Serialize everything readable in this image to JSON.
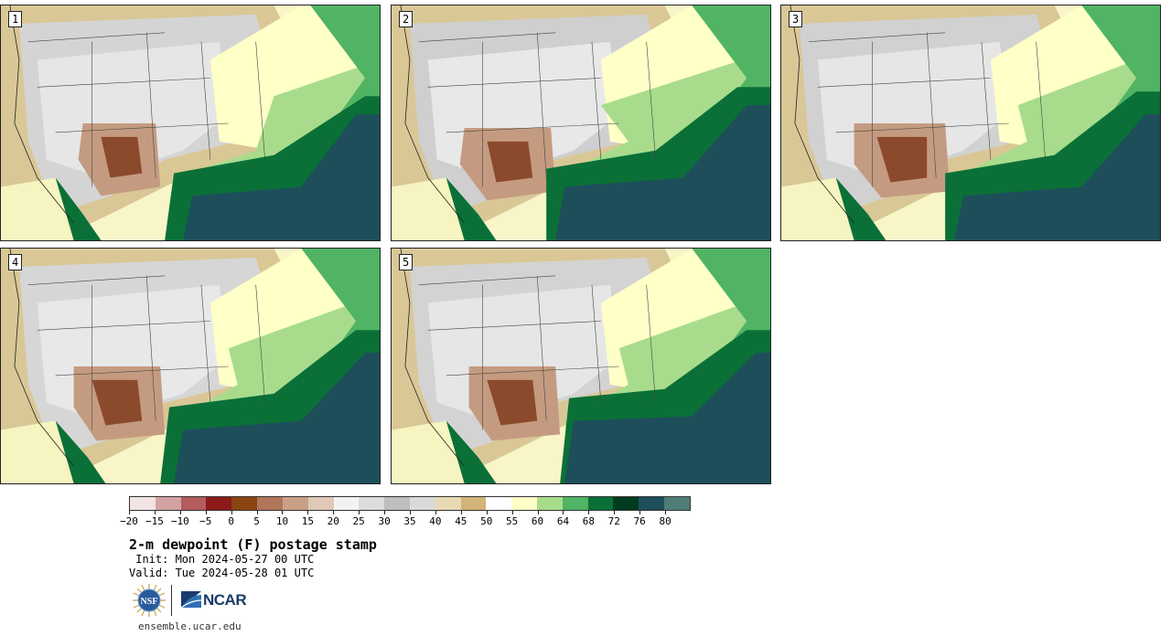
{
  "panels": [
    {
      "label": "1"
    },
    {
      "label": "2"
    },
    {
      "label": "3"
    },
    {
      "label": "4"
    },
    {
      "label": "5"
    }
  ],
  "colorbar": {
    "colors": [
      "#f2e4e4",
      "#d3a3a3",
      "#b35c5c",
      "#8c1a1a",
      "#8b4513",
      "#b0755a",
      "#c9a087",
      "#e0c8b8",
      "#f2f2f2",
      "#dcdcdc",
      "#bebebe",
      "#d9d9d9",
      "#e6d9b4",
      "#d2b478",
      "#ffffff",
      "#ffffc8",
      "#a8dc8c",
      "#50b464",
      "#0a7038",
      "#003c20",
      "#1e4e5a",
      "#507c78"
    ],
    "tick_labels": [
      "−20",
      "−15",
      "−10",
      "−5",
      "0",
      "5",
      "10",
      "15",
      "20",
      "25",
      "30",
      "35",
      "40",
      "45",
      "50",
      "55",
      "60",
      "64",
      "68",
      "72",
      "76",
      "80"
    ]
  },
  "title": "2-m dewpoint (F) postage stamp",
  "init": " Init: Mon 2024-05-27 00 UTC",
  "valid": "Valid: Tue 2024-05-28 01 UTC",
  "logos": {
    "nsf": "NSF",
    "ncar": "NCAR",
    "nsf_icon": "nsf-globe-logo",
    "ncar_icon": "ncar-logo"
  },
  "url": "ensemble.ucar.edu"
}
